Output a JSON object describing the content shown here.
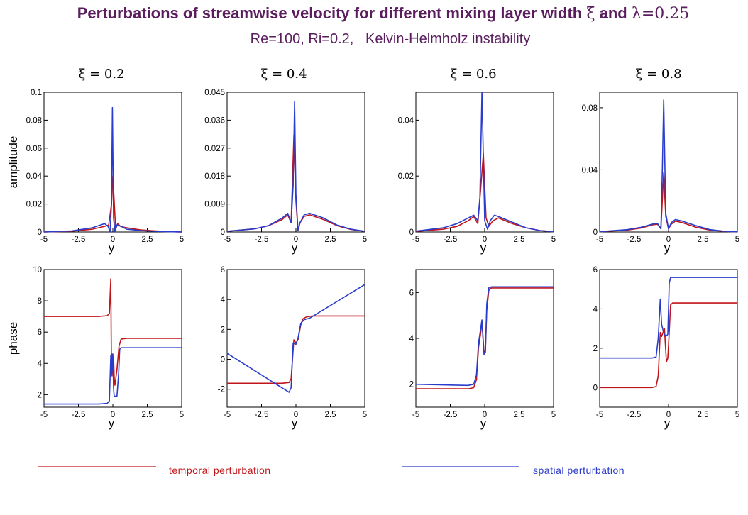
{
  "title": {
    "main": "Perturbations of streamwise velocity for different mixing layer width",
    "xi_symbol": "ξ",
    "and_text": "and",
    "lambda_text": "λ=0.25"
  },
  "subtitle": "Re=100, Ri=0.2,   Kelvin-Helmholz instability",
  "colors": {
    "title": "#5a1d5e",
    "temporal": "#c0161b",
    "spatial": "#2a3ccc"
  },
  "legend": {
    "temporal": "temporal perturbation",
    "spatial": "spatial perturbation"
  },
  "chart_data": [
    {
      "type": "line",
      "panel_title": "ξ = 0.2",
      "xlabel": "y",
      "ylabel": "amplitude",
      "xlim": [
        -5,
        5
      ],
      "ylim": [
        0,
        0.1
      ],
      "xticks": [
        "-5",
        "-2.5",
        "0",
        "2.5",
        "5"
      ],
      "yticks": [
        "0",
        "0.02",
        "0.04",
        "0.06",
        "0.08",
        "0.1"
      ],
      "series": [
        {
          "name": "temporal perturbation",
          "x": [
            -5,
            -3,
            -1.5,
            -0.6,
            -0.3,
            -0.1,
            0,
            0.1,
            0.2,
            0.35,
            0.55,
            1,
            2,
            3,
            4,
            5
          ],
          "y": [
            0,
            0.0005,
            0.002,
            0.004,
            0.005,
            0.02,
            0.04,
            0.022,
            0.002,
            0.006,
            0.004,
            0.003,
            0.0015,
            0.0008,
            0.0003,
            0
          ]
        },
        {
          "name": "spatial perturbation",
          "x": [
            -5,
            -3,
            -1.5,
            -0.6,
            -0.35,
            -0.2,
            -0.1,
            -0.03,
            0.05,
            0.15,
            0.3,
            0.6,
            1,
            2,
            3,
            4,
            5
          ],
          "y": [
            0,
            0.0007,
            0.003,
            0.006,
            0.004,
            0.0,
            0.02,
            0.089,
            0.01,
            0.0,
            0.005,
            0.004,
            0.002,
            0.001,
            0.0005,
            0.0002,
            0
          ]
        }
      ]
    },
    {
      "type": "line",
      "panel_title": "ξ = 0.4",
      "xlabel": "y",
      "ylabel": "",
      "xlim": [
        -5,
        5
      ],
      "ylim": [
        0,
        0.045
      ],
      "xticks": [
        "-5",
        "-2.5",
        "0",
        "2.5",
        "5"
      ],
      "yticks": [
        "0",
        "0.009",
        "0.018",
        "0.027",
        "0.036",
        "0.045"
      ],
      "series": [
        {
          "name": "temporal perturbation",
          "x": [
            -5,
            -3,
            -2,
            -1,
            -0.6,
            -0.35,
            -0.15,
            0,
            0.15,
            0.3,
            0.6,
            1,
            2,
            3,
            4,
            5
          ],
          "y": [
            0.0002,
            0.001,
            0.002,
            0.004,
            0.0055,
            0.003,
            0.031,
            0.01,
            0.0005,
            0.003,
            0.005,
            0.0055,
            0.004,
            0.002,
            0.0008,
            0.0002
          ]
        },
        {
          "name": "spatial perturbation",
          "x": [
            -5,
            -3,
            -2,
            -1,
            -0.6,
            -0.35,
            -0.2,
            -0.1,
            0,
            0.15,
            0.3,
            0.6,
            1,
            2,
            3,
            4,
            5
          ],
          "y": [
            0.0002,
            0.001,
            0.002,
            0.0045,
            0.006,
            0.003,
            0.015,
            0.042,
            0.012,
            0.0005,
            0.003,
            0.0055,
            0.006,
            0.0045,
            0.0022,
            0.0009,
            0.0002
          ]
        }
      ]
    },
    {
      "type": "line",
      "panel_title": "ξ = 0.6",
      "xlabel": "y",
      "ylabel": "",
      "xlim": [
        -5,
        5
      ],
      "ylim": [
        0,
        0.05
      ],
      "xticks": [
        "-5",
        "-2.5",
        "0",
        "2.5",
        "5"
      ],
      "yticks": [
        "0",
        "0.02",
        "0.04"
      ],
      "series": [
        {
          "name": "temporal perturbation",
          "x": [
            -5,
            -3,
            -2,
            -1.2,
            -0.8,
            -0.5,
            -0.3,
            -0.1,
            0.1,
            0.3,
            0.6,
            1,
            2,
            3,
            4,
            5
          ],
          "y": [
            0.0002,
            0.001,
            0.002,
            0.004,
            0.0055,
            0.003,
            0.015,
            0.028,
            0.005,
            0.002,
            0.004,
            0.005,
            0.003,
            0.0015,
            0.0005,
            0.0001
          ]
        },
        {
          "name": "spatial perturbation",
          "x": [
            -5,
            -3,
            -2,
            -1.2,
            -0.8,
            -0.5,
            -0.35,
            -0.2,
            0.0,
            0.2,
            0.4,
            0.7,
            1,
            2,
            3,
            4,
            5
          ],
          "y": [
            0.0003,
            0.0015,
            0.003,
            0.005,
            0.006,
            0.004,
            0.012,
            0.05,
            0.004,
            0.001,
            0.004,
            0.006,
            0.0055,
            0.0035,
            0.0015,
            0.0005,
            0.0001
          ]
        }
      ]
    },
    {
      "type": "line",
      "panel_title": "ξ = 0.8",
      "xlabel": "y",
      "ylabel": "",
      "xlim": [
        -5,
        5
      ],
      "ylim": [
        0,
        0.09
      ],
      "xticks": [
        "-5",
        "-2.5",
        "0",
        "2.5",
        "5"
      ],
      "yticks": [
        "0",
        "0.04",
        "0.08"
      ],
      "series": [
        {
          "name": "temporal perturbation",
          "x": [
            -5,
            -3,
            -2,
            -1.2,
            -0.8,
            -0.55,
            -0.35,
            -0.2,
            0.0,
            0.2,
            0.5,
            1,
            2,
            3,
            4,
            5
          ],
          "y": [
            0.0002,
            0.0012,
            0.0025,
            0.0045,
            0.005,
            0.002,
            0.038,
            0.01,
            0.002,
            0.005,
            0.007,
            0.006,
            0.003,
            0.0012,
            0.0004,
            0.0001
          ]
        },
        {
          "name": "spatial perturbation",
          "x": [
            -5,
            -3,
            -2,
            -1.2,
            -0.8,
            -0.55,
            -0.45,
            -0.35,
            -0.2,
            0.0,
            0.2,
            0.5,
            1,
            2,
            3,
            4,
            5
          ],
          "y": [
            0.0002,
            0.0015,
            0.003,
            0.005,
            0.0055,
            0.002,
            0.04,
            0.085,
            0.012,
            0.002,
            0.006,
            0.008,
            0.007,
            0.004,
            0.0015,
            0.0005,
            0.0001
          ]
        }
      ]
    },
    {
      "type": "line",
      "panel_title": "",
      "xlabel": "y",
      "ylabel": "phase",
      "xlim": [
        -5,
        5
      ],
      "ylim": [
        1.2,
        10
      ],
      "xticks": [
        "-5",
        "-2.5",
        "0",
        "2.5",
        "5"
      ],
      "yticks": [
        "2",
        "4",
        "6",
        "8",
        "10"
      ],
      "series": [
        {
          "name": "temporal perturbation",
          "x": [
            -5,
            -1,
            -0.4,
            -0.25,
            -0.15,
            -0.1,
            -0.05,
            0.0,
            0.05,
            0.1,
            0.15,
            0.3,
            0.45,
            0.6,
            1,
            5
          ],
          "y": [
            7.0,
            7.0,
            7.05,
            7.2,
            9.4,
            3.2,
            4.6,
            3.2,
            4.4,
            3.1,
            2.6,
            3.6,
            5.1,
            5.55,
            5.6,
            5.6
          ]
        },
        {
          "name": "spatial perturbation",
          "x": [
            -5,
            -1,
            -0.4,
            -0.25,
            -0.15,
            -0.08,
            0.0,
            0.05,
            0.1,
            0.3,
            0.42,
            0.5,
            0.6,
            1,
            5
          ],
          "y": [
            1.4,
            1.4,
            1.45,
            1.6,
            4.5,
            3.3,
            4.6,
            2.4,
            1.9,
            1.9,
            3.3,
            4.9,
            5.0,
            5.0,
            5.0
          ]
        }
      ]
    },
    {
      "type": "line",
      "panel_title": "",
      "xlabel": "y",
      "ylabel": "",
      "xlim": [
        -5,
        5
      ],
      "ylim": [
        -3.2,
        6
      ],
      "xticks": [
        "-5",
        "-2.5",
        "0",
        "2.5",
        "5"
      ],
      "yticks": [
        "-2",
        "0",
        "2",
        "4",
        "6"
      ],
      "series": [
        {
          "name": "temporal perturbation",
          "x": [
            -5,
            -1,
            -0.5,
            -0.35,
            -0.15,
            0.0,
            0.15,
            0.35,
            0.5,
            0.8,
            1.2,
            2,
            5
          ],
          "y": [
            -1.6,
            -1.6,
            -1.55,
            -1.3,
            1.3,
            1.1,
            1.3,
            2.3,
            2.7,
            2.85,
            2.9,
            2.9,
            2.9
          ]
        },
        {
          "name": "spatial perturbation",
          "x": [
            -5,
            -0.5,
            -0.35,
            -0.2,
            0.0,
            0.15,
            0.35,
            0.6,
            1.0,
            5
          ],
          "y": [
            0.4,
            -2.2,
            -1.9,
            1.1,
            1.0,
            1.4,
            2.4,
            2.65,
            2.75,
            5.0
          ]
        }
      ]
    },
    {
      "type": "line",
      "panel_title": "",
      "xlabel": "y",
      "ylabel": "",
      "xlim": [
        -5,
        5
      ],
      "ylim": [
        1,
        7
      ],
      "xticks": [
        "-5",
        "-2.5",
        "0",
        "2.5",
        "5"
      ],
      "yticks": [
        "2",
        "4",
        "6"
      ],
      "series": [
        {
          "name": "temporal perturbation",
          "x": [
            -5,
            -1.2,
            -0.8,
            -0.6,
            -0.45,
            -0.3,
            -0.2,
            -0.05,
            0.05,
            0.15,
            0.3,
            0.5,
            1,
            5
          ],
          "y": [
            1.8,
            1.8,
            1.85,
            2.2,
            3.6,
            4.2,
            4.7,
            3.4,
            3.5,
            5.2,
            6.1,
            6.2,
            6.2,
            6.2
          ]
        },
        {
          "name": "spatial perturbation",
          "x": [
            -5,
            -1.2,
            -0.8,
            -0.6,
            -0.45,
            -0.3,
            -0.2,
            -0.05,
            0.05,
            0.15,
            0.3,
            0.5,
            1,
            5
          ],
          "y": [
            2.0,
            1.95,
            2.0,
            2.4,
            3.8,
            4.4,
            4.8,
            3.3,
            3.4,
            5.5,
            6.2,
            6.25,
            6.25,
            6.25
          ]
        }
      ]
    },
    {
      "type": "line",
      "panel_title": "",
      "xlabel": "y",
      "ylabel": "",
      "xlim": [
        -5,
        5
      ],
      "ylim": [
        -1,
        6
      ],
      "xticks": [
        "-5",
        "-2.5",
        "0",
        "2.5",
        "5"
      ],
      "yticks": [
        "0",
        "2",
        "4",
        "6"
      ],
      "series": [
        {
          "name": "temporal perturbation",
          "x": [
            -5,
            -1.2,
            -0.9,
            -0.75,
            -0.6,
            -0.5,
            -0.3,
            -0.15,
            -0.05,
            0.05,
            0.15,
            0.3,
            1,
            5
          ],
          "y": [
            0.0,
            0.0,
            0.05,
            0.6,
            2.8,
            2.6,
            3.0,
            1.3,
            1.5,
            2.8,
            4.2,
            4.3,
            4.3,
            4.3
          ]
        },
        {
          "name": "spatial perturbation",
          "x": [
            -5,
            -1.2,
            -0.9,
            -0.75,
            -0.6,
            -0.5,
            -0.35,
            -0.2,
            -0.05,
            0.05,
            0.15,
            0.3,
            1,
            5
          ],
          "y": [
            1.5,
            1.5,
            1.55,
            2.5,
            4.5,
            3.2,
            2.8,
            2.6,
            2.7,
            5.3,
            5.6,
            5.6,
            5.6,
            5.6
          ]
        }
      ]
    }
  ]
}
